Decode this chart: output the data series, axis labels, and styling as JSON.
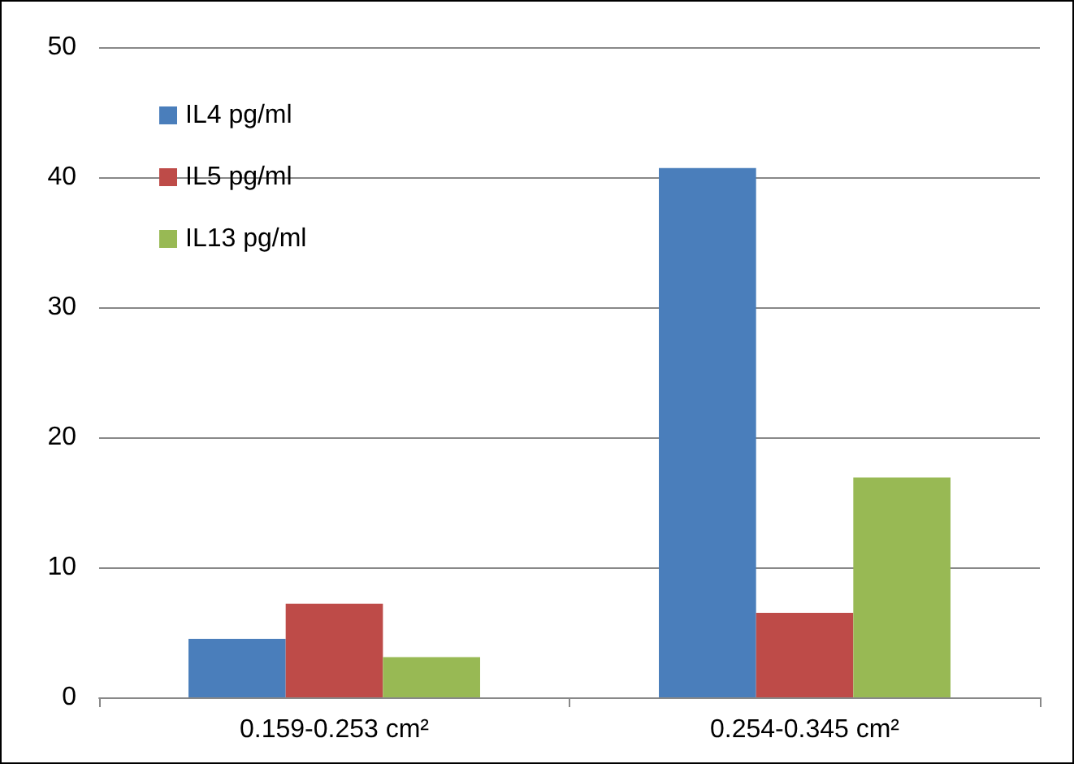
{
  "chart_data": {
    "type": "bar",
    "categories": [
      "0.159-0.253 cm²",
      "0.254-0.345 cm²"
    ],
    "series": [
      {
        "name": "IL4 pg/ml",
        "color": "#4a7ebb",
        "values": [
          4.5,
          40.7
        ]
      },
      {
        "name": "IL5 pg/ml",
        "color": "#be4b48",
        "values": [
          7.2,
          6.5
        ]
      },
      {
        "name": "IL13 pg/ml",
        "color": "#98b954",
        "values": [
          3.1,
          16.9
        ]
      }
    ],
    "ylim": [
      0,
      50
    ],
    "yticks": [
      0,
      10,
      20,
      30,
      40,
      50
    ],
    "grid": "y",
    "legend": "top left"
  }
}
